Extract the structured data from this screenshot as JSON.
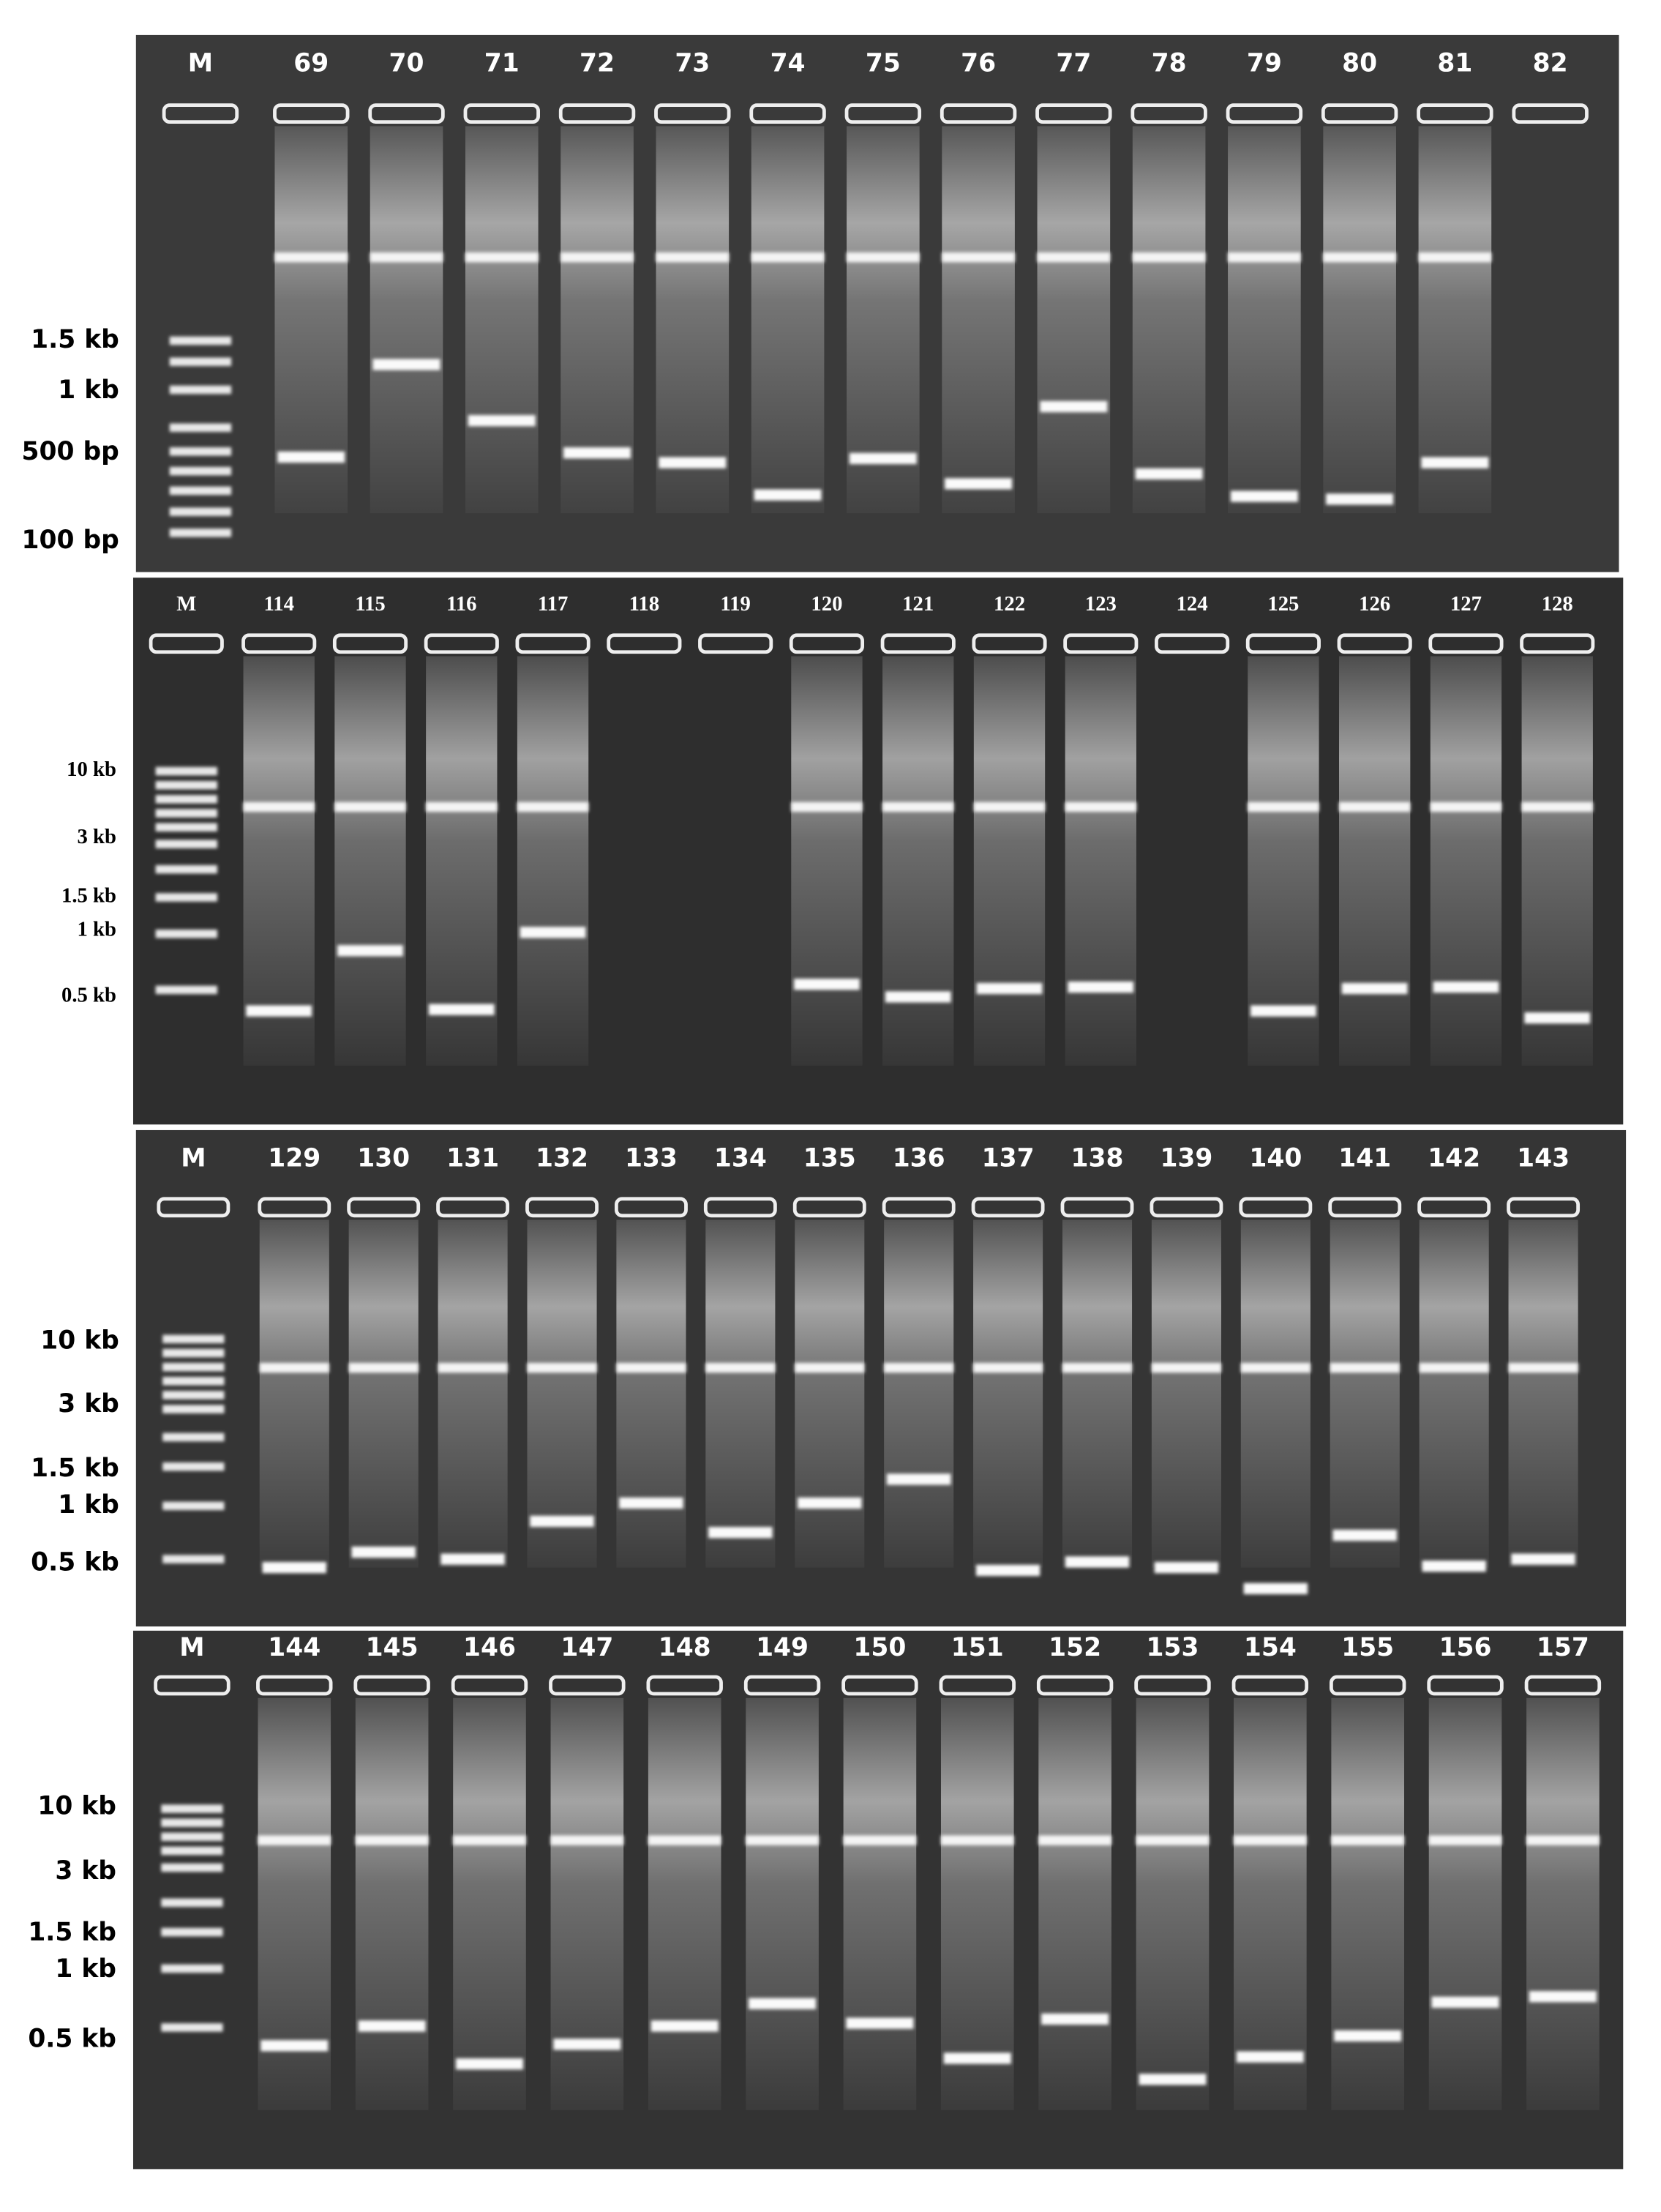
{
  "panels": [
    {
      "lane_labels": [
        "M",
        "69",
        "70",
        "71",
        "72",
        "73",
        "74",
        "75",
        "76",
        "77",
        "78",
        "79",
        "80",
        "81",
        "82"
      ],
      "size_labels": [
        "1.5 kb",
        "1 kb",
        "500 bp",
        "100 bp"
      ]
    },
    {
      "lane_labels": [
        "M",
        "114",
        "115",
        "116",
        "117",
        "118",
        "119",
        "120",
        "121",
        "122",
        "123",
        "124",
        "125",
        "126",
        "127",
        "128"
      ],
      "size_labels": [
        "10 kb",
        "3 kb",
        "1.5 kb",
        "1 kb",
        "0.5 kb"
      ]
    },
    {
      "lane_labels": [
        "M",
        "129",
        "130",
        "131",
        "132",
        "133",
        "134",
        "135",
        "136",
        "137",
        "138",
        "139",
        "140",
        "141",
        "142",
        "143"
      ],
      "size_labels": [
        "10 kb",
        "3 kb",
        "1.5 kb",
        "1 kb",
        "0.5 kb"
      ]
    },
    {
      "lane_labels": [
        "M",
        "144",
        "145",
        "146",
        "147",
        "148",
        "149",
        "150",
        "151",
        "152",
        "153",
        "154",
        "155",
        "156",
        "157"
      ],
      "size_labels": [
        "10 kb",
        "3 kb",
        "1.5 kb",
        "1 kb",
        "0.5 kb"
      ]
    }
  ]
}
